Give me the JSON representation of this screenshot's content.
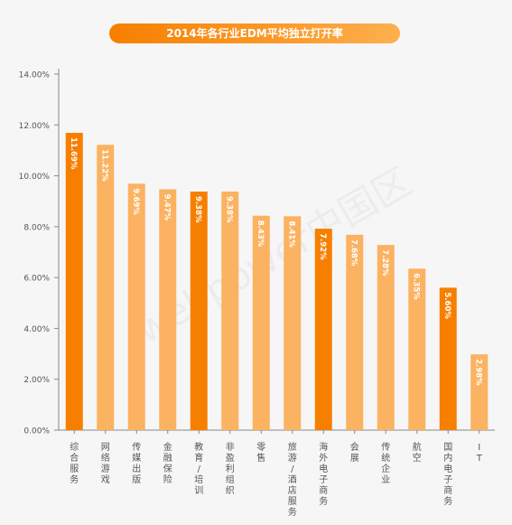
{
  "watermark": "webpower中国区",
  "colors": {
    "highlight": "#f77f00",
    "normal": "#fbb261",
    "axis": "#888888",
    "grid": "#d8d8d8",
    "tick_text": "#555555",
    "value_text": "#ffffff"
  },
  "chart_data": {
    "type": "bar",
    "title": "2014年各行业EDM平均独立打开率",
    "xlabel": "",
    "ylabel": "",
    "ylim": [
      0,
      14
    ],
    "yticks": [
      0,
      2,
      4,
      6,
      8,
      10,
      12,
      14
    ],
    "ytick_labels": [
      "0.00%",
      "2.00%",
      "4.00%",
      "6.00%",
      "8.00%",
      "10.00%",
      "12.00%",
      "14.00%"
    ],
    "grid": false,
    "categories": [
      "综合服务",
      "网络游戏",
      "传媒出版",
      "金融保险",
      "教育/培训",
      "非盈利组织",
      "零售",
      "旅游/酒店服务",
      "海外电子商务",
      "会展",
      "传统企业",
      "航空",
      "国内电子商务",
      "IT"
    ],
    "values": [
      11.69,
      11.22,
      9.69,
      9.47,
      9.38,
      9.38,
      8.43,
      8.41,
      7.92,
      7.68,
      7.28,
      6.35,
      5.6,
      2.98
    ],
    "value_labels": [
      "11.69%",
      "11.22%",
      "9.69%",
      "9.47%",
      "9.38%",
      "9.38%",
      "8.43%",
      "8.41%",
      "7.92%",
      "7.68%",
      "7.28%",
      "6.35%",
      "5.60%",
      "2.98%"
    ],
    "highlighted": [
      true,
      false,
      false,
      false,
      true,
      false,
      false,
      false,
      true,
      false,
      false,
      false,
      true,
      false
    ]
  }
}
